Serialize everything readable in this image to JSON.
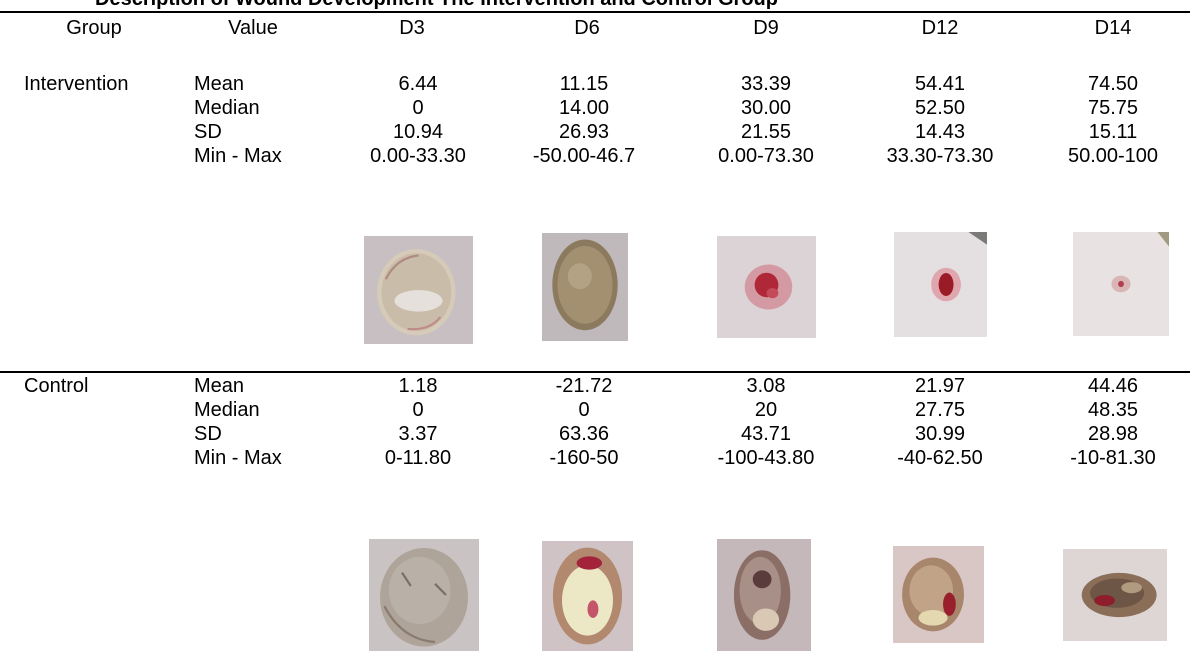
{
  "title": "Description of Wound Development The Intervention and Control Group",
  "headers": {
    "group": "Group",
    "value": "Value",
    "days": [
      "D3",
      "D6",
      "D9",
      "D12",
      "D14"
    ]
  },
  "groups": [
    {
      "name": "Intervention",
      "rows": [
        {
          "label": "Mean",
          "values": [
            "6.44",
            "11.15",
            "33.39",
            "54.41",
            "74.50"
          ]
        },
        {
          "label": "Median",
          "values": [
            "0",
            "14.00",
            "30.00",
            "52.50",
            "75.75"
          ]
        },
        {
          "label": "SD",
          "values": [
            "10.94",
            "26.93",
            "21.55",
            "14.43",
            "15.11"
          ]
        },
        {
          "label": "Min - Max",
          "values": [
            "0.00-33.30",
            "-50.00-46.7",
            "0.00-73.30",
            "33.30-73.30",
            "50.00-100"
          ]
        }
      ]
    },
    {
      "name": "Control",
      "rows": [
        {
          "label": "Mean",
          "values": [
            "1.18",
            "-21.72",
            "3.08",
            "21.97",
            "44.46"
          ]
        },
        {
          "label": "Median",
          "values": [
            "0",
            "0",
            "20",
            "27.75",
            "48.35"
          ]
        },
        {
          "label": "SD",
          "values": [
            "3.37",
            "63.36",
            "43.71",
            "30.99",
            "28.98"
          ]
        },
        {
          "label": "Min - Max",
          "values": [
            "0-11.80",
            "-160-50",
            "-100-43.80",
            "-40-62.50",
            "-10-81.30"
          ]
        }
      ]
    }
  ]
}
